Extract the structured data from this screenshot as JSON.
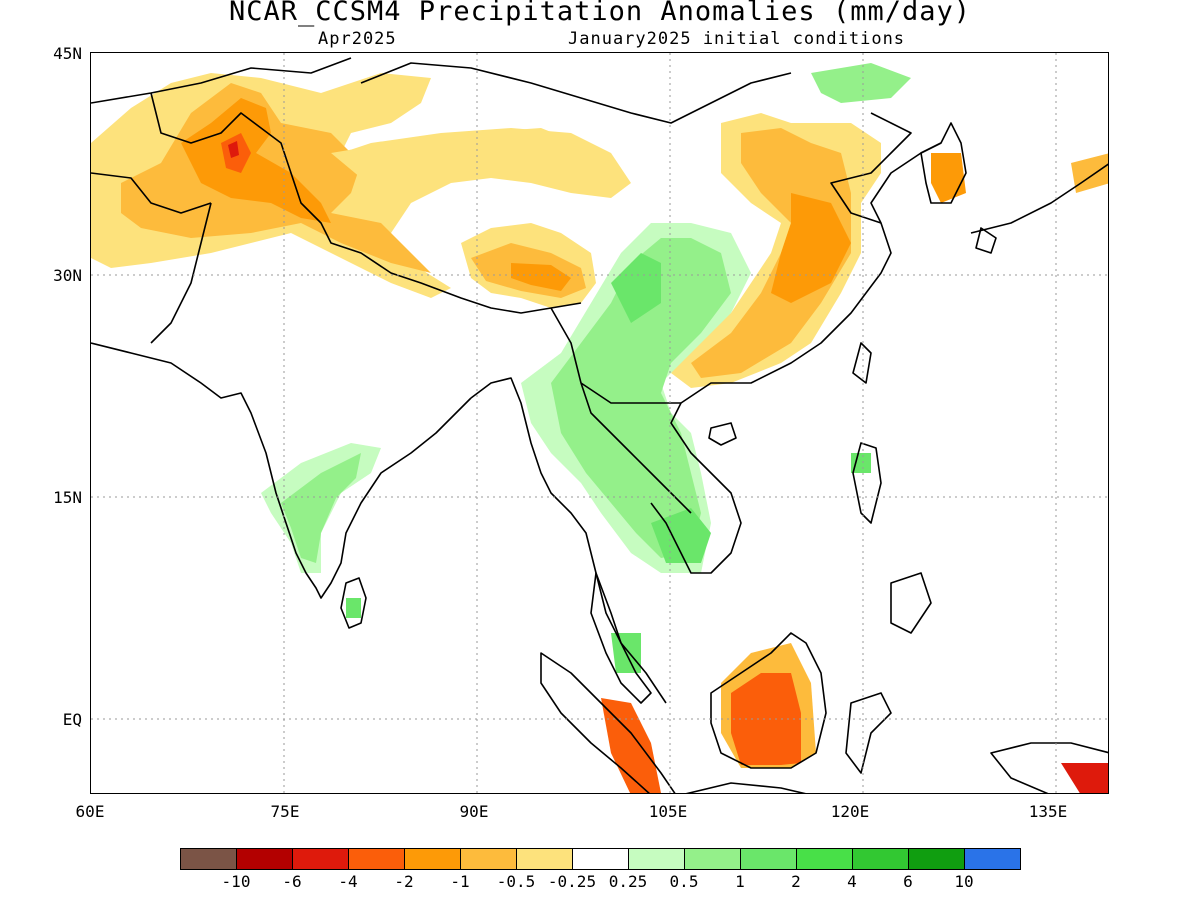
{
  "title": "NCAR_CCSM4 Precipitation Anomalies (mm/day)",
  "subtitle_left": "Apr2025",
  "subtitle_right": "January2025 initial conditions",
  "lat_labels": [
    "45N",
    "30N",
    "15N",
    "EQ"
  ],
  "lon_labels": [
    "60E",
    "75E",
    "90E",
    "105E",
    "120E",
    "135E"
  ],
  "colorbar": {
    "colors": [
      "#7b5446",
      "#b30000",
      "#de1a0c",
      "#fb5e0a",
      "#fd9a07",
      "#fdbb3c",
      "#fde27c",
      "#ffffff",
      "#c6fcc0",
      "#94f08a",
      "#6ae66a",
      "#48e048",
      "#32c832",
      "#109e10",
      "#2a73e8"
    ],
    "labels": [
      "-10",
      "-6",
      "-4",
      "-2",
      "-1",
      "-0.5",
      "-0.25",
      "0.25",
      "0.5",
      "1",
      "2",
      "4",
      "6",
      "10"
    ]
  },
  "legend_colors": {
    "dry_light": "#fde27c",
    "dry_mid": "#fdbb3c",
    "dry_strong": "#fd9a07",
    "dry_heavy": "#fb5e0a",
    "dry_extreme": "#de1a0c",
    "wet_light": "#c6fcc0",
    "wet_mid": "#94f08a",
    "wet_strong": "#6ae66a"
  }
}
